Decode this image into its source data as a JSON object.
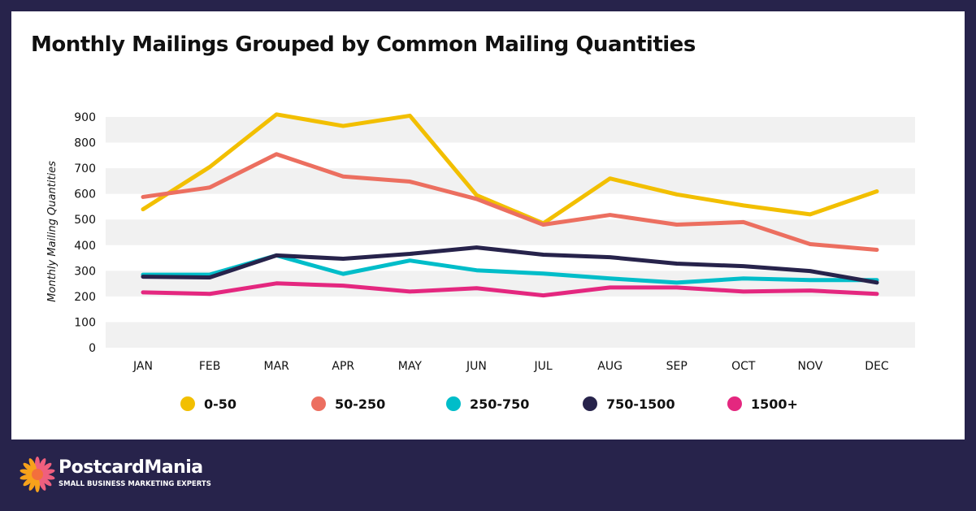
{
  "chart_data": {
    "type": "line",
    "title": "Monthly Mailings Grouped by Common Mailing Quantities",
    "xlabel": "",
    "ylabel": "Monthly Mailing Quantities",
    "ylim": [
      0,
      900
    ],
    "yticks": [
      0,
      100,
      200,
      300,
      400,
      500,
      600,
      700,
      800,
      900
    ],
    "grid": "alternating horizontal bands",
    "legend": "bottom",
    "categories": [
      "JAN",
      "FEB",
      "MAR",
      "APR",
      "MAY",
      "JUN",
      "JUL",
      "AUG",
      "SEP",
      "OCT",
      "NOV",
      "DEC"
    ],
    "series": [
      {
        "name": "0-50",
        "color": "#f2bf00",
        "values": [
          540,
          705,
          910,
          865,
          905,
          595,
          485,
          660,
          598,
          555,
          520,
          610
        ]
      },
      {
        "name": "50-250",
        "color": "#ec6f60",
        "values": [
          588,
          625,
          755,
          668,
          648,
          580,
          480,
          518,
          480,
          490,
          404,
          382
        ]
      },
      {
        "name": "250-750",
        "color": "#00bdc9",
        "values": [
          285,
          285,
          360,
          288,
          340,
          302,
          289,
          270,
          254,
          270,
          264,
          264
        ]
      },
      {
        "name": "750-1500",
        "color": "#27234b",
        "values": [
          277,
          274,
          360,
          347,
          366,
          391,
          363,
          353,
          328,
          318,
          299,
          254
        ]
      },
      {
        "name": "1500+",
        "color": "#e4277f",
        "values": [
          216,
          210,
          251,
          242,
          219,
          232,
          204,
          235,
          235,
          219,
          223,
          210
        ]
      }
    ]
  },
  "footer": {
    "brand": "PostcardMania",
    "tagline": "SMALL BUSINESS MARKETING EXPERTS"
  }
}
